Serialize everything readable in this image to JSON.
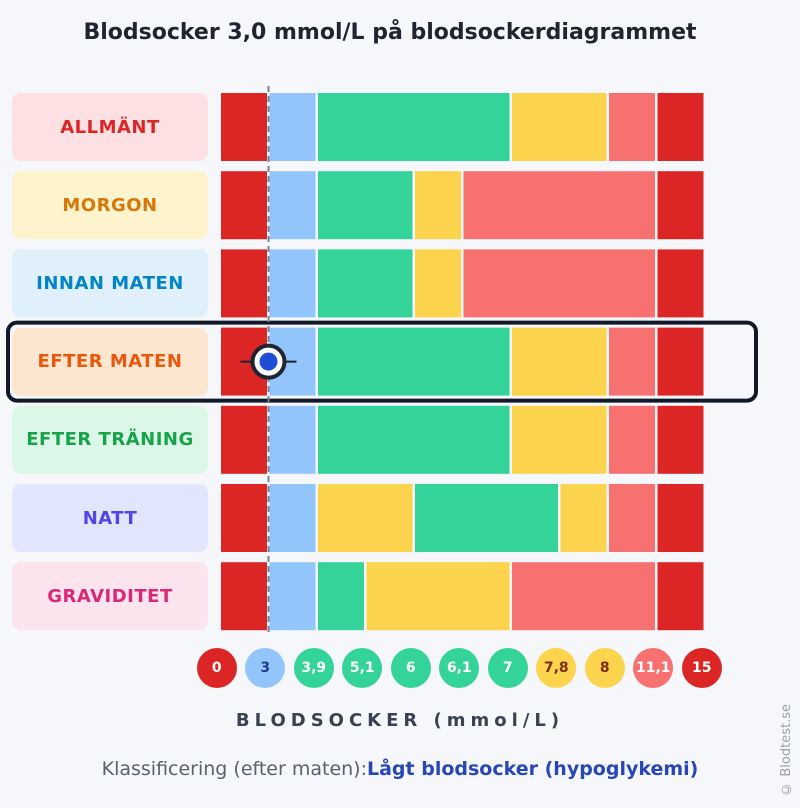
{
  "title": "Blodsocker 3,0 mmol/L på blodsockerdiagrammet",
  "colors": {
    "red": "#dc2626",
    "blue": "#93c5fd",
    "green": "#34d399",
    "yellow": "#fcd34d",
    "salmon": "#f87171",
    "marker": "#1d4ed8",
    "highlight_border": "#111827"
  },
  "chart_data": {
    "type": "table",
    "x_ticks": [
      "0",
      "3",
      "3,9",
      "5,1",
      "6",
      "6,1",
      "7",
      "7,8",
      "8",
      "11,1",
      "15"
    ],
    "xlabel": "BLODSOCKER (mmol/L)",
    "highlighted_row": "EFTER MATEN",
    "marker_value": 3.0,
    "rows": [
      {
        "label": "ALLMÄNT",
        "label_color": "#dc2626",
        "bg": "#fde0e2",
        "segments": [
          "red",
          "blue",
          "green",
          "green",
          "green",
          "green",
          "yellow",
          "yellow",
          "salmon",
          "red"
        ]
      },
      {
        "label": "MORGON",
        "label_color": "#d97706",
        "bg": "#fdf3cd",
        "segments": [
          "red",
          "blue",
          "green",
          "green",
          "yellow",
          "salmon",
          "salmon",
          "salmon",
          "salmon",
          "red"
        ]
      },
      {
        "label": "INNAN MATEN",
        "label_color": "#0284c7",
        "bg": "#dff0fb",
        "segments": [
          "red",
          "blue",
          "green",
          "green",
          "yellow",
          "salmon",
          "salmon",
          "salmon",
          "salmon",
          "red"
        ]
      },
      {
        "label": "EFTER MATEN",
        "label_color": "#ea580c",
        "bg": "#fde6cf",
        "segments": [
          "red",
          "blue",
          "green",
          "green",
          "green",
          "green",
          "yellow",
          "yellow",
          "salmon",
          "red"
        ]
      },
      {
        "label": "EFTER TRÄNING",
        "label_color": "#16a34a",
        "bg": "#dcf7e7",
        "segments": [
          "red",
          "blue",
          "green",
          "green",
          "green",
          "green",
          "yellow",
          "yellow",
          "salmon",
          "red"
        ]
      },
      {
        "label": "NATT",
        "label_color": "#4f46e5",
        "bg": "#e2e6fd",
        "segments": [
          "red",
          "blue",
          "yellow",
          "yellow",
          "green",
          "green",
          "green",
          "yellow",
          "salmon",
          "red"
        ]
      },
      {
        "label": "GRAVIDITET",
        "label_color": "#db2777",
        "bg": "#fce4ef",
        "segments": [
          "red",
          "blue",
          "green",
          "yellow",
          "yellow",
          "yellow",
          "salmon",
          "salmon",
          "salmon",
          "red"
        ]
      }
    ],
    "tick_colors": [
      "red",
      "blue",
      "green",
      "green",
      "green",
      "green",
      "green",
      "yellow",
      "yellow",
      "salmon",
      "red"
    ]
  },
  "classification": {
    "prefix": "Klassificering (efter maten):",
    "value": "Lågt blodsocker (hypoglykemi)"
  },
  "credit": "© Blodtest.se"
}
